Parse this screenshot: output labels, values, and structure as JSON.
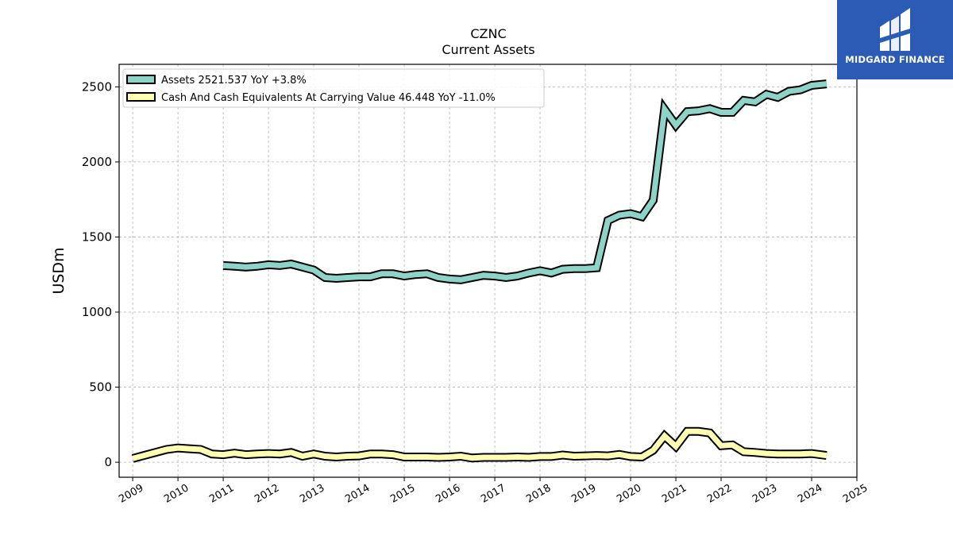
{
  "chart_data": {
    "type": "line",
    "title": "CZNC",
    "subtitle": "Current  Assets",
    "ylabel": "USDm",
    "xlabel": "",
    "xlim": [
      2008.7,
      2025.0
    ],
    "ylim": [
      -100,
      2650
    ],
    "yticks": [
      0,
      500,
      1000,
      1500,
      2000,
      2500
    ],
    "xticks": [
      "2009",
      "2010",
      "2011",
      "2012",
      "2013",
      "2014",
      "2015",
      "2016",
      "2017",
      "2018",
      "2019",
      "2020",
      "2021",
      "2022",
      "2023",
      "2024",
      "2025"
    ],
    "grid": true,
    "legend_position": "top-left",
    "series": [
      {
        "name": "Assets",
        "legend_label": "Assets  2521.537 YoY +3.8%",
        "color": "#8dd3c7",
        "x": [
          2011.0,
          2011.25,
          2011.5,
          2011.75,
          2012.0,
          2012.25,
          2012.5,
          2012.75,
          2013.0,
          2013.25,
          2013.5,
          2013.75,
          2014.0,
          2014.25,
          2014.5,
          2014.75,
          2015.0,
          2015.25,
          2015.5,
          2015.75,
          2016.0,
          2016.25,
          2016.5,
          2016.75,
          2017.0,
          2017.25,
          2017.5,
          2017.75,
          2018.0,
          2018.25,
          2018.5,
          2018.75,
          2019.0,
          2019.25,
          2019.5,
          2019.75,
          2020.0,
          2020.25,
          2020.5,
          2020.75,
          2021.0,
          2021.25,
          2021.5,
          2021.75,
          2022.0,
          2022.25,
          2022.5,
          2022.75,
          2023.0,
          2023.25,
          2023.5,
          2023.75,
          2024.0,
          2024.33
        ],
        "y": [
          1310,
          1305,
          1300,
          1305,
          1315,
          1310,
          1320,
          1300,
          1280,
          1230,
          1225,
          1230,
          1235,
          1235,
          1255,
          1255,
          1240,
          1250,
          1255,
          1230,
          1220,
          1215,
          1230,
          1245,
          1240,
          1230,
          1240,
          1260,
          1275,
          1260,
          1285,
          1290,
          1290,
          1295,
          1610,
          1645,
          1655,
          1635,
          1745,
          2350,
          2245,
          2335,
          2340,
          2355,
          2330,
          2330,
          2410,
          2400,
          2450,
          2430,
          2470,
          2480,
          2510,
          2520
        ]
      },
      {
        "name": "Cash And Cash Equivalents At Carrying Value",
        "legend_label": "Cash And Cash Equivalents At Carrying Value  46.448 YoY -11.0%",
        "color": "#ffffb3",
        "x": [
          2009.0,
          2009.25,
          2009.5,
          2009.75,
          2010.0,
          2010.25,
          2010.5,
          2010.75,
          2011.0,
          2011.25,
          2011.5,
          2011.75,
          2012.0,
          2012.25,
          2012.5,
          2012.75,
          2013.0,
          2013.25,
          2013.5,
          2013.75,
          2014.0,
          2014.25,
          2014.5,
          2014.75,
          2015.0,
          2015.25,
          2015.5,
          2015.75,
          2016.0,
          2016.25,
          2016.5,
          2016.75,
          2017.0,
          2017.25,
          2017.5,
          2017.75,
          2018.0,
          2018.25,
          2018.5,
          2018.75,
          2019.0,
          2019.25,
          2019.5,
          2019.75,
          2020.0,
          2020.25,
          2020.5,
          2020.75,
          2021.0,
          2021.25,
          2021.5,
          2021.75,
          2022.0,
          2022.25,
          2022.5,
          2022.75,
          2023.0,
          2023.25,
          2023.5,
          2023.75,
          2024.0,
          2024.33
        ],
        "y": [
          25,
          45,
          65,
          85,
          95,
          90,
          85,
          55,
          50,
          60,
          50,
          55,
          58,
          55,
          65,
          40,
          55,
          40,
          35,
          40,
          42,
          55,
          55,
          50,
          35,
          35,
          35,
          32,
          35,
          40,
          28,
          32,
          32,
          32,
          35,
          32,
          38,
          38,
          48,
          40,
          42,
          45,
          42,
          52,
          38,
          35,
          80,
          175,
          105,
          205,
          205,
          195,
          110,
          115,
          70,
          65,
          58,
          55,
          55,
          55,
          58,
          45
        ]
      }
    ]
  },
  "logo": {
    "text": "MIDGARD FINANCE",
    "background": "#2b5bb5"
  }
}
